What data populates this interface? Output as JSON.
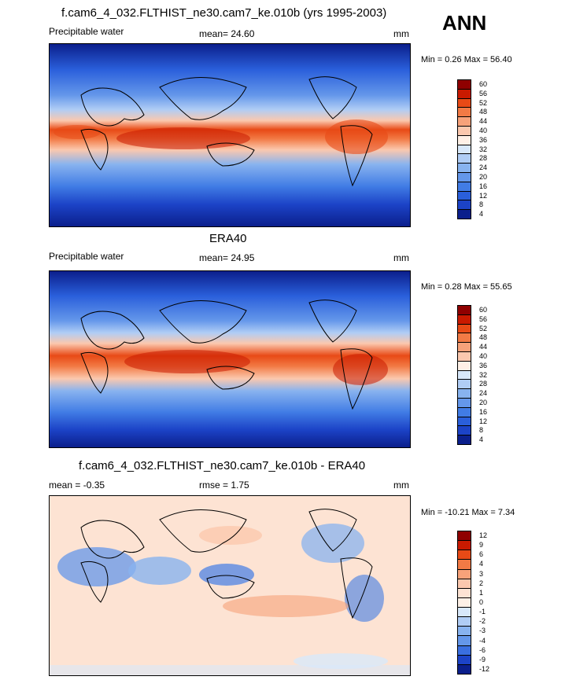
{
  "ann_label": "ANN",
  "chart_data": [
    {
      "type": "heatmap",
      "title": "f.cam6_4_032.FLTHIST_ne30.cam7_ke.010b (yrs 1995-2003)",
      "left_label": "Precipitable water",
      "stat_label": "mean=",
      "stat_value": "24.60",
      "units": "mm",
      "minmax_text": "Min =   0.26 Max =  56.40",
      "colorbar_levels": [
        "60",
        "56",
        "52",
        "48",
        "44",
        "40",
        "36",
        "32",
        "28",
        "24",
        "20",
        "16",
        "12",
        "8",
        "4"
      ],
      "colorbar_colors": [
        "#8f0000",
        "#c91a00",
        "#e84a16",
        "#f27a45",
        "#f7a27a",
        "#fbc8ae",
        "#fff0e6",
        "#d8e8fa",
        "#b0cdf5",
        "#88b3ef",
        "#6497ea",
        "#417ce5",
        "#2a5fdb",
        "#1c43c7",
        "#0b1f8c"
      ],
      "min": 0.26,
      "max": 56.4,
      "mean": 24.6
    },
    {
      "type": "heatmap",
      "title": "ERA40",
      "left_label": "Precipitable water",
      "stat_label": "mean=",
      "stat_value": "24.95",
      "units": "mm",
      "minmax_text": "Min =   0.28 Max =  55.65",
      "colorbar_levels": [
        "60",
        "56",
        "52",
        "48",
        "44",
        "40",
        "36",
        "32",
        "28",
        "24",
        "20",
        "16",
        "12",
        "8",
        "4"
      ],
      "colorbar_colors": [
        "#8f0000",
        "#c91a00",
        "#e84a16",
        "#f27a45",
        "#f7a27a",
        "#fbc8ae",
        "#fff0e6",
        "#d8e8fa",
        "#b0cdf5",
        "#88b3ef",
        "#6497ea",
        "#417ce5",
        "#2a5fdb",
        "#1c43c7",
        "#0b1f8c"
      ],
      "min": 0.28,
      "max": 55.65,
      "mean": 24.95
    },
    {
      "type": "heatmap",
      "title": "f.cam6_4_032.FLTHIST_ne30.cam7_ke.010b - ERA40",
      "left_label": "mean =  -0.35",
      "stat_label": "rmse =",
      "stat_value": "1.75",
      "units": "mm",
      "minmax_text": "Min = -10.21 Max =   7.34",
      "colorbar_levels": [
        "12",
        "9",
        "6",
        "4",
        "3",
        "2",
        "1",
        "0",
        "-1",
        "-2",
        "-3",
        "-4",
        "-6",
        "-9",
        "-12"
      ],
      "colorbar_colors": [
        "#8f0000",
        "#c91a00",
        "#e84a16",
        "#f27a45",
        "#f7a27a",
        "#fbc8ae",
        "#fde3d3",
        "#fdf0e6",
        "#d8e8fa",
        "#b0cdf5",
        "#88b3ef",
        "#6497ea",
        "#3a6fe0",
        "#1c43c7",
        "#0b1f8c"
      ],
      "min": -10.21,
      "max": 7.34,
      "mean": -0.35,
      "rmse": 1.75
    }
  ]
}
